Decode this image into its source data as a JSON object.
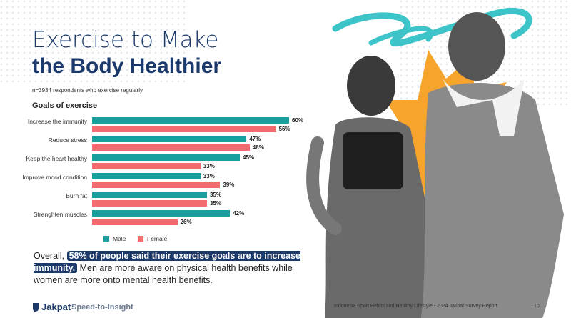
{
  "header": {
    "title_line1": "Exercise to Make",
    "title_line2": "the Body Healthier",
    "note": "n=3934 respondents who exercise regularly"
  },
  "chart_data": {
    "type": "bar",
    "orientation": "horizontal",
    "title": "Goals of exercise",
    "categories": [
      "Increase the immunity",
      "Reduce stress",
      "Keep the heart healthy",
      "Improve mood condition",
      "Burn fat",
      "Strenghten muscles"
    ],
    "series": [
      {
        "name": "Male",
        "color": "#1a9e9e",
        "values": [
          60,
          47,
          45,
          33,
          35,
          42
        ],
        "value_labels": [
          "60%",
          "47%",
          "45%",
          "33%",
          "35%",
          "42%"
        ]
      },
      {
        "name": "Female",
        "color": "#f26b6f",
        "values": [
          56,
          48,
          33,
          39,
          35,
          26
        ],
        "value_labels": [
          "56%",
          "48%",
          "33%",
          "39%",
          "35%",
          "26%"
        ]
      }
    ],
    "legend": "bottom"
  },
  "summary": {
    "prefix": "Overall,",
    "highlight": "58% of people said their exercise goals are to increase immunity.",
    "rest": "Men are more aware on physical health benefits while women are more onto mental health benefits."
  },
  "footer": {
    "brand": "Jakpat",
    "tagline": "Speed-to-Insight",
    "report": "Indonesia Sport Habits and Healthy Lifestyle - 2024 Jakpat Survey Report",
    "page": "10"
  }
}
